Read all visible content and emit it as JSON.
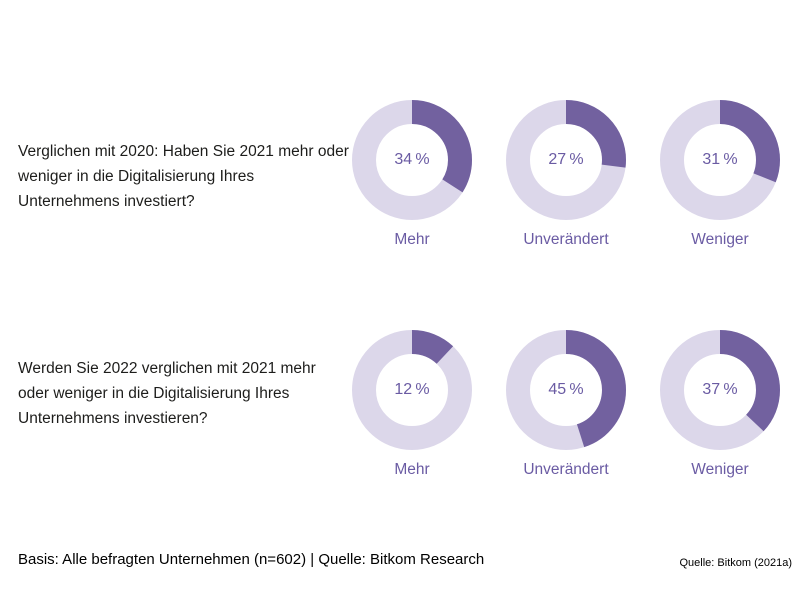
{
  "page": {
    "background": "#ffffff"
  },
  "colors": {
    "segment": "#72619f",
    "remainder": "#dcd7ea",
    "purple_text": "#6a5ba3",
    "question_text": "#1d1d1b",
    "footer_text": "#000000"
  },
  "chart_data": [
    {
      "type": "donut",
      "question": "Verglichen mit 2020: Haben Sie 2021 mehr oder weniger in die Digitalisierung Ihres Unternehmens investiert?",
      "categories": [
        "Mehr",
        "Unverändert",
        "Weniger"
      ],
      "values": [
        34,
        27,
        31
      ],
      "unit": "%",
      "start_angle_deg": 0,
      "direction": "clockwise",
      "legend_position": "below-each-donut"
    },
    {
      "type": "donut",
      "question": "Werden Sie 2022 verglichen mit 2021 mehr oder weniger in die Digitalisierung Ihres Unternehmens investieren?",
      "categories": [
        "Mehr",
        "Unverändert",
        "Weniger"
      ],
      "values": [
        12,
        45,
        37
      ],
      "unit": "%",
      "start_angle_deg": 0,
      "direction": "clockwise",
      "legend_position": "below-each-donut"
    }
  ],
  "footer": {
    "basis": "Basis: Alle befragten Unternehmen (n=602) | Quelle: Bitkom Research",
    "source": "Quelle: Bitkom (2021a)"
  }
}
